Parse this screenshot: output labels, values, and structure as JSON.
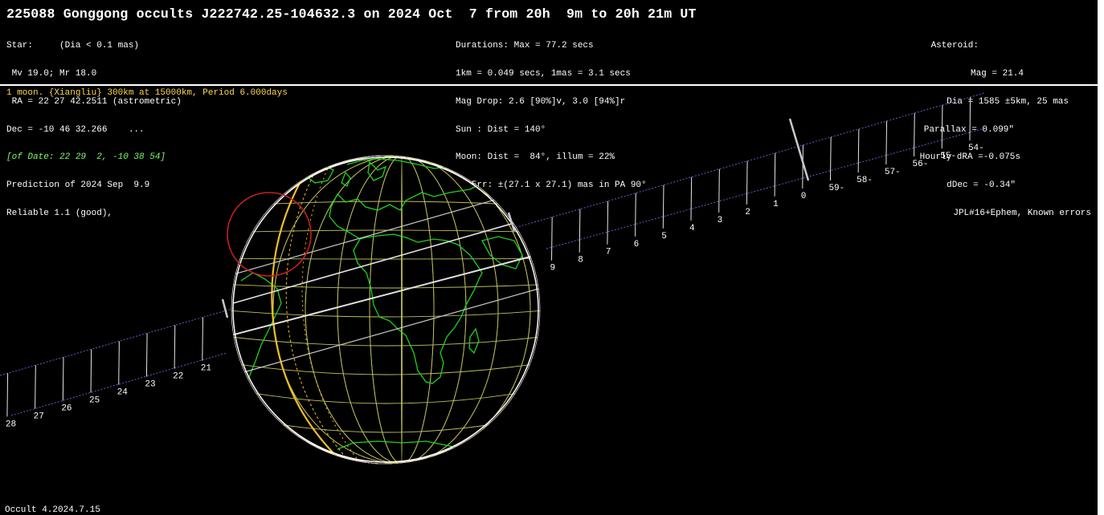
{
  "title": "225088 Gonggong occults J222742.25-104632.3 on 2024 Oct  7 from 20h  9m to 20h 21m UT",
  "star_block": [
    "Star:     (Dia < 0.1 mas)",
    " Mv 19.0; Mr 18.0",
    " RA = 22 27 42.2511 (astrometric)",
    "Dec = -10 46 32.266    ...",
    "[of Date: 22 29  2, -10 38 54]",
    "Prediction of 2024 Sep  9.9",
    "Reliable 1.1 (good),"
  ],
  "middle_block": [
    "Durations: Max = 77.2 secs",
    "1km = 0.049 secs, 1mas = 3.1 secs",
    "Mag Drop: 2.6 [90%]v, 3.0 [94%]r",
    "Sun : Dist = 140°",
    "Moon: Dist =  84°, illum = 22%",
    "1σ Err: ±(27.1 x 27.1) mas in PA 90°"
  ],
  "asteroid_block": [
    "Asteroid:",
    "Mag = 21.4",
    "Dia = 1585 ±5km, 25 mas",
    "Parallax = 0.099\"",
    "Hourly dRA =-0.075s",
    "dDec = -0.34\"",
    "JPL#16+Ephem, Known errors"
  ],
  "moon_line": "1 moon. {Xiangliu} 300km at 15000km, Period 6.000days",
  "footer": "Occult 4.2024.7.15",
  "track_labels_left": [
    "28",
    "27",
    "26",
    "25",
    "24",
    "23",
    "22",
    "21"
  ],
  "track_labels_right": [
    "9",
    "8",
    "7",
    "6",
    "5",
    "4",
    "3",
    "2",
    "1",
    "0",
    "59-",
    "58-",
    "57-",
    "56-",
    "55-",
    "54-"
  ],
  "colors": {
    "background": "#000000",
    "path_lines": "#e6e6e6",
    "limit_lines": "#c8c8c8",
    "grid": "#bfbf5a",
    "coast": "#1ed21e",
    "terminator": "#f0c020",
    "moon_circle": "#c81e1e",
    "track": "#6a5acd",
    "moon_text": "#ffd84a"
  },
  "icons": {
    "globe": "earth-globe-icon",
    "moon_marker": "satellite-circle-icon"
  }
}
